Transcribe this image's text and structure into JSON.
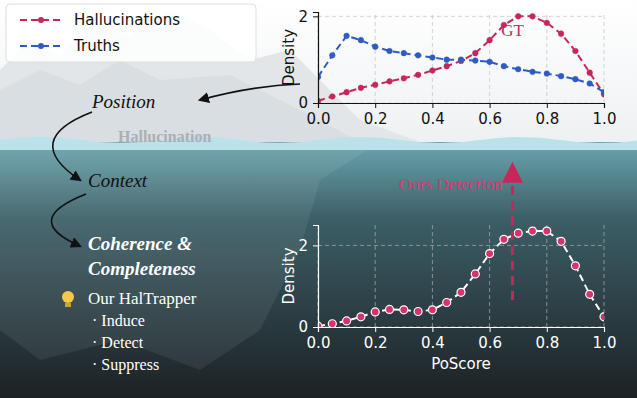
{
  "chart_data": [
    {
      "type": "line",
      "x": [
        0,
        0.05,
        0.1,
        0.15,
        0.2,
        0.25,
        0.3,
        0.35,
        0.4,
        0.45,
        0.5,
        0.55,
        0.6,
        0.65,
        0.7,
        0.75,
        0.8,
        0.85,
        0.9,
        0.95,
        1
      ],
      "series": [
        {
          "name": "Hallucinations",
          "color": "#c8265a",
          "marker": "circle",
          "line_style": "dashed",
          "values": [
            0.05,
            0.15,
            0.25,
            0.35,
            0.42,
            0.5,
            0.57,
            0.65,
            0.75,
            0.85,
            0.97,
            1.15,
            1.45,
            1.8,
            2.0,
            2.0,
            1.85,
            1.6,
            1.2,
            0.7,
            0.2
          ]
        },
        {
          "name": "Truths",
          "color": "#2f5cc4",
          "marker": "circle",
          "line_style": "dashed",
          "values": [
            0.6,
            1.1,
            1.55,
            1.45,
            1.3,
            1.2,
            1.15,
            1.1,
            1.05,
            1.0,
            1.0,
            0.98,
            0.95,
            0.85,
            0.78,
            0.72,
            0.68,
            0.62,
            0.55,
            0.45,
            0.25
          ]
        }
      ],
      "xlim": [
        0,
        1
      ],
      "ylim": [
        0,
        2.1
      ],
      "xticks": [
        {
          "value": 0,
          "label": "0.0"
        },
        {
          "value": 0.2,
          "label": "0.2"
        },
        {
          "value": 0.4,
          "label": "0.4"
        },
        {
          "value": 0.6,
          "label": "0.6"
        },
        {
          "value": 0.8,
          "label": "0.8"
        },
        {
          "value": 1,
          "label": "1.0"
        }
      ],
      "yticks": [
        0,
        2
      ],
      "y_label": "Density",
      "grid": true,
      "legend": "upper left",
      "annotations": [
        {
          "text": "GT",
          "x": 0.68,
          "y": 1.55
        }
      ]
    },
    {
      "type": "line",
      "x": [
        0,
        0.05,
        0.1,
        0.15,
        0.2,
        0.25,
        0.3,
        0.35,
        0.4,
        0.45,
        0.5,
        0.55,
        0.6,
        0.65,
        0.7,
        0.75,
        0.8,
        0.85,
        0.9,
        0.95,
        1
      ],
      "series": [
        {
          "color": "#d6336c",
          "marker": "circle",
          "line_style": "dashed",
          "values": [
            0.02,
            0.08,
            0.15,
            0.25,
            0.37,
            0.43,
            0.42,
            0.38,
            0.42,
            0.6,
            0.85,
            1.3,
            1.8,
            2.15,
            2.3,
            2.35,
            2.35,
            2.1,
            1.5,
            0.8,
            0.25
          ]
        }
      ],
      "xlim": [
        0,
        1
      ],
      "ylim": [
        0,
        2.5
      ],
      "xticks": [
        {
          "value": 0,
          "label": "0.0"
        },
        {
          "value": 0.2,
          "label": "0.2"
        },
        {
          "value": 0.4,
          "label": "0.4"
        },
        {
          "value": 0.6,
          "label": "0.6"
        },
        {
          "value": 0.8,
          "label": "0.8"
        },
        {
          "value": 1,
          "label": "1.0"
        }
      ],
      "yticks": [
        0,
        2
      ],
      "x_label": "PoScore",
      "y_label": "Density",
      "grid": true,
      "annotations": [
        {
          "text": "Ours Detection",
          "x": 0.68
        }
      ]
    }
  ],
  "diagram": {
    "waterline": "Hallucination",
    "steps": [
      [
        "Position"
      ],
      [
        "Context"
      ],
      [
        "Coherence &",
        "Completeness"
      ]
    ],
    "method": {
      "title": "Our HalTrapper",
      "items": [
        "· Induce",
        "· Detect",
        "· Suppress"
      ]
    }
  }
}
